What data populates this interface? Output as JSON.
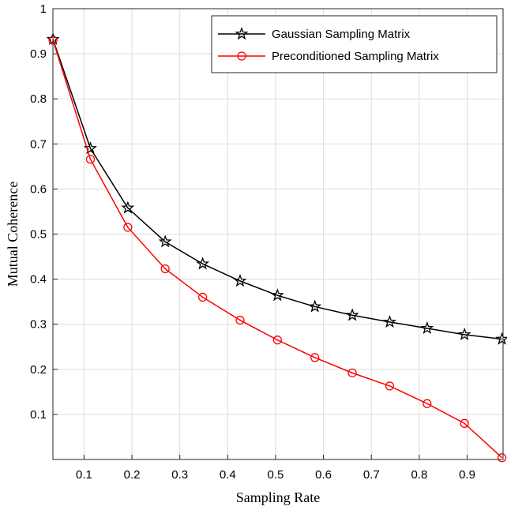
{
  "chart_data": {
    "type": "line",
    "xlabel": "Sampling Rate",
    "ylabel": "Mutual Coherence",
    "xlim": [
      0.035,
      0.975
    ],
    "ylim": [
      0,
      1
    ],
    "grid": true,
    "legend_position": "top-right",
    "x_ticks": [
      {
        "value": 0.1,
        "label": "0.1"
      },
      {
        "value": 0.2,
        "label": "0.2"
      },
      {
        "value": 0.3,
        "label": "0.3"
      },
      {
        "value": 0.4,
        "label": "0.4"
      },
      {
        "value": 0.5,
        "label": "0.5"
      },
      {
        "value": 0.6,
        "label": "0.6"
      },
      {
        "value": 0.7,
        "label": "0.7"
      },
      {
        "value": 0.8,
        "label": "0.8"
      },
      {
        "value": 0.9,
        "label": "0.9"
      }
    ],
    "y_ticks": [
      {
        "value": 0.1,
        "label": "0.1"
      },
      {
        "value": 0.2,
        "label": "0.2"
      },
      {
        "value": 0.3,
        "label": "0.3"
      },
      {
        "value": 0.4,
        "label": "0.4"
      },
      {
        "value": 0.5,
        "label": "0.5"
      },
      {
        "value": 0.6,
        "label": "0.6"
      },
      {
        "value": 0.7,
        "label": "0.7"
      },
      {
        "value": 0.8,
        "label": "0.8"
      },
      {
        "value": 0.9,
        "label": "0.9"
      },
      {
        "value": 1,
        "label": "1"
      }
    ],
    "x": [
      0.0352,
      0.1133,
      0.1914,
      0.2695,
      0.3477,
      0.4258,
      0.5039,
      0.582,
      0.6602,
      0.7383,
      0.8164,
      0.8945,
      0.9727
    ],
    "series": [
      {
        "name": "Gaussian Sampling Matrix",
        "color": "#000000",
        "marker": "star",
        "values": [
          0.932,
          0.69,
          0.558,
          0.483,
          0.434,
          0.396,
          0.364,
          0.339,
          0.32,
          0.305,
          0.291,
          0.277,
          0.267
        ]
      },
      {
        "name": "Preconditioned Sampling Matrix",
        "color": "#ff0000",
        "marker": "circle",
        "values": [
          0.93,
          0.666,
          0.515,
          0.423,
          0.36,
          0.309,
          0.265,
          0.226,
          0.192,
          0.163,
          0.124,
          0.08,
          0.004
        ]
      }
    ]
  }
}
